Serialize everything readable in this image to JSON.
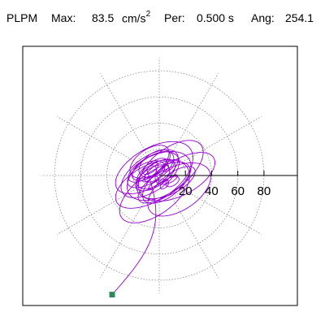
{
  "header": {
    "station": "PLPM",
    "max_label": "Max:",
    "max_value": "83.5",
    "max_unit": "cm/s",
    "max_unit_exp": "2",
    "per_label": "Per:",
    "per_value": "0.500 s",
    "ang_label": "Ang:",
    "ang_value": "254.1"
  },
  "chart_data": {
    "type": "polar-orbit",
    "radial_ticks": [
      20,
      40,
      60,
      80
    ],
    "radial_tick_labels": [
      "20",
      "40",
      "60",
      "80"
    ],
    "rmax": 90,
    "grid": true,
    "angle_spokes_deg": [
      0,
      30,
      60,
      90,
      120,
      150,
      180,
      210,
      240,
      270,
      300,
      330
    ],
    "trace_color": "#9400d3",
    "marker_color": "#2e8b57",
    "end_point": {
      "x": -36,
      "y": -91
    },
    "max_amplitude": 83.5,
    "angle_deg": 254.1
  }
}
